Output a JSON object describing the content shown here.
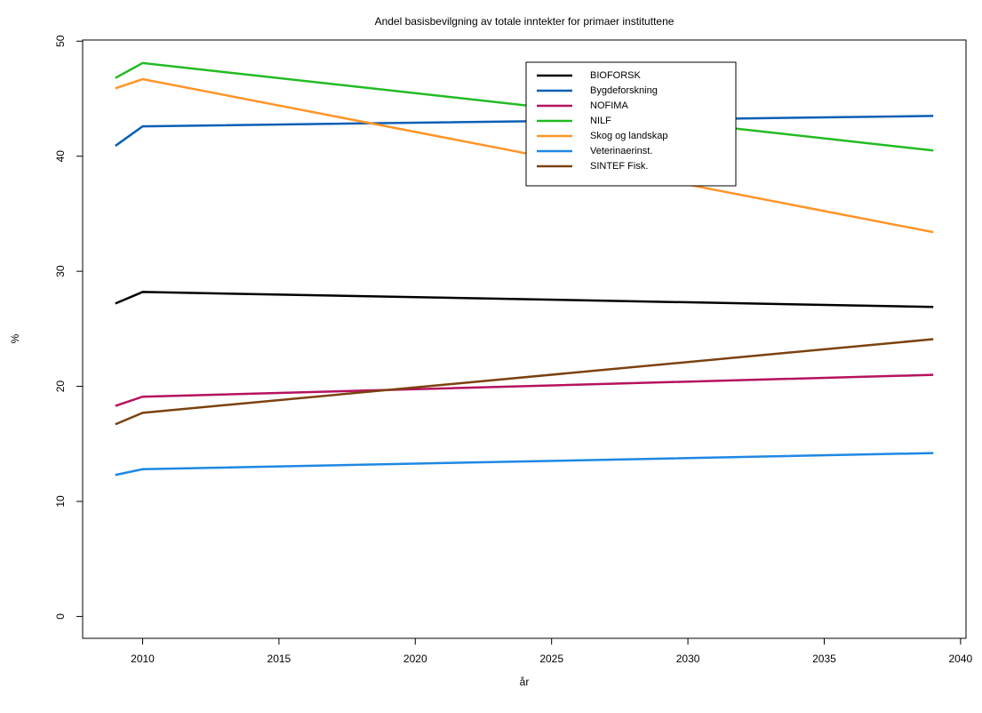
{
  "chart_data": {
    "type": "line",
    "title": "Andel basisbevilgning av totale inntekter for primaer instituttene",
    "x_label": "år",
    "y_label": "%",
    "x": [
      2009,
      2010,
      2039
    ],
    "series": [
      {
        "name": "BIOFORSK",
        "color": "#000000",
        "values": [
          27.2,
          28.2,
          26.9
        ]
      },
      {
        "name": "Bygdeforskning",
        "color": "#0a5fb4",
        "values": [
          40.9,
          42.6,
          43.5
        ]
      },
      {
        "name": "NOFIMA",
        "color": "#b5125e",
        "values": [
          18.3,
          19.1,
          21.0
        ]
      },
      {
        "name": "NILF",
        "color": "#22bb22",
        "values": [
          46.8,
          48.1,
          40.5
        ]
      },
      {
        "name": "Skog og landskap",
        "color": "#ff9428",
        "values": [
          45.9,
          46.7,
          33.4
        ]
      },
      {
        "name": "Veterinaerinst.",
        "color": "#1e88e5",
        "values": [
          12.3,
          12.8,
          14.2
        ]
      },
      {
        "name": "SINTEF Fisk.",
        "color": "#7b4210",
        "values": [
          16.7,
          17.7,
          24.1
        ]
      }
    ],
    "xlim": [
      2007.8,
      2040.2
    ],
    "ylim": [
      -1.9,
      50.1
    ],
    "xticks": [
      2010,
      2015,
      2020,
      2025,
      2030,
      2035,
      2040
    ],
    "yticks": [
      0,
      10,
      20,
      30,
      40,
      50
    ],
    "legend_position": "top"
  }
}
